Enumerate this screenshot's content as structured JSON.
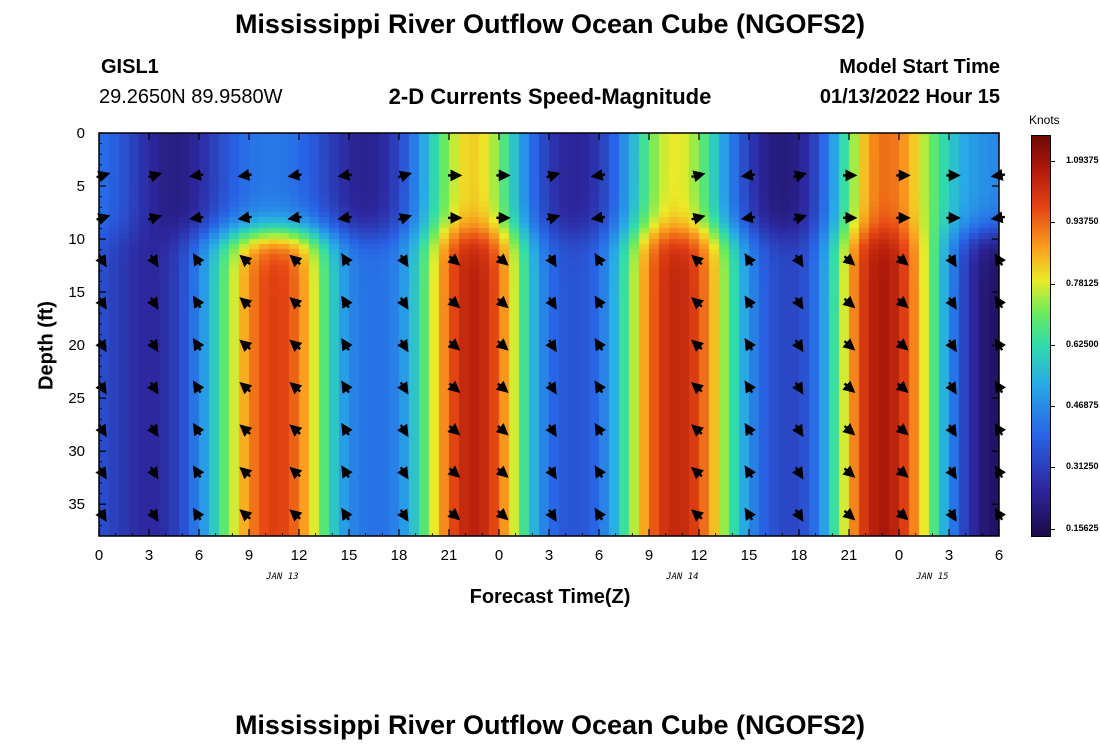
{
  "title": "Mississippi River Outflow Ocean Cube (NGOFS2)",
  "repeat_title": "Mississippi River Outflow Ocean Cube (NGOFS2)",
  "station": {
    "name": "GISL1",
    "coords": "29.2650N  89.9580W"
  },
  "subtitle": "2-D Currents Speed-Magnitude",
  "model_start": {
    "label": "Model Start Time",
    "value": "01/13/2022 Hour 15"
  },
  "colorbar": {
    "unit": "Knots",
    "min": 0.14,
    "max": 1.16,
    "tick_values": [
      0.15625,
      0.3125,
      0.46875,
      0.625,
      0.78125,
      0.9375,
      1.09375
    ],
    "tick_labels": [
      "0.15625",
      "0.31250",
      "0.46875",
      "0.62500",
      "0.78125",
      "0.93750",
      "1.09375"
    ]
  },
  "chart_data": {
    "type": "heatmap",
    "title": "2-D Currents Speed-Magnitude",
    "xlabel": "Forecast Time(Z)",
    "ylabel": "Depth (ft)",
    "xlim": [
      0,
      54
    ],
    "ylim": [
      38,
      0
    ],
    "x_tick_values": [
      0,
      3,
      6,
      9,
      12,
      15,
      18,
      21,
      24,
      27,
      30,
      33,
      36,
      39,
      42,
      45,
      48,
      51,
      54
    ],
    "x_tick_labels": [
      "0",
      "3",
      "6",
      "9",
      "12",
      "15",
      "18",
      "21",
      "0",
      "3",
      "6",
      "9",
      "12",
      "15",
      "18",
      "21",
      "0",
      "3",
      "6"
    ],
    "y_tick_values": [
      0,
      5,
      10,
      15,
      20,
      25,
      30,
      35
    ],
    "y_tick_labels": [
      "0",
      "5",
      "10",
      "15",
      "20",
      "25",
      "30",
      "35"
    ],
    "date_labels": [
      {
        "x": 11,
        "text": "JAN 13"
      },
      {
        "x": 35,
        "text": "JAN 14"
      },
      {
        "x": 50,
        "text": "JAN 15"
      }
    ],
    "upper_layer_peaks": [
      {
        "x": 22.5,
        "speed": 0.85
      },
      {
        "x": 34.5,
        "speed": 0.82
      },
      {
        "x": 47.0,
        "speed": 0.95
      }
    ],
    "upper_layer_lows": [
      {
        "x": 4.5,
        "speed": 0.22
      },
      {
        "x": 16.0,
        "speed": 0.24
      },
      {
        "x": 28.5,
        "speed": 0.25
      },
      {
        "x": 41.0,
        "speed": 0.21
      }
    ],
    "lower_layer_peaks": [
      {
        "x": 11.0,
        "speed": 1.02
      },
      {
        "x": 22.5,
        "speed": 1.1
      },
      {
        "x": 34.5,
        "speed": 1.07
      },
      {
        "x": 46.5,
        "speed": 1.14
      }
    ],
    "lower_layer_lows": [
      {
        "x": 3.0,
        "speed": 0.26
      },
      {
        "x": 16.5,
        "speed": 0.42
      },
      {
        "x": 28.5,
        "speed": 0.36
      },
      {
        "x": 41.5,
        "speed": 0.33
      },
      {
        "x": 54.0,
        "speed": 0.18
      }
    ],
    "vector_x_hours": [
      0.2,
      3.3,
      5.9,
      8.8,
      11.8,
      14.8,
      18.3,
      21.3,
      24.2,
      27.2,
      30.0,
      35.9,
      39.0,
      42.0,
      45.0,
      48.2,
      51.2,
      54.0
    ],
    "vector_depths_ft": [
      4,
      8,
      12,
      16,
      20,
      24,
      28,
      32,
      36
    ]
  }
}
